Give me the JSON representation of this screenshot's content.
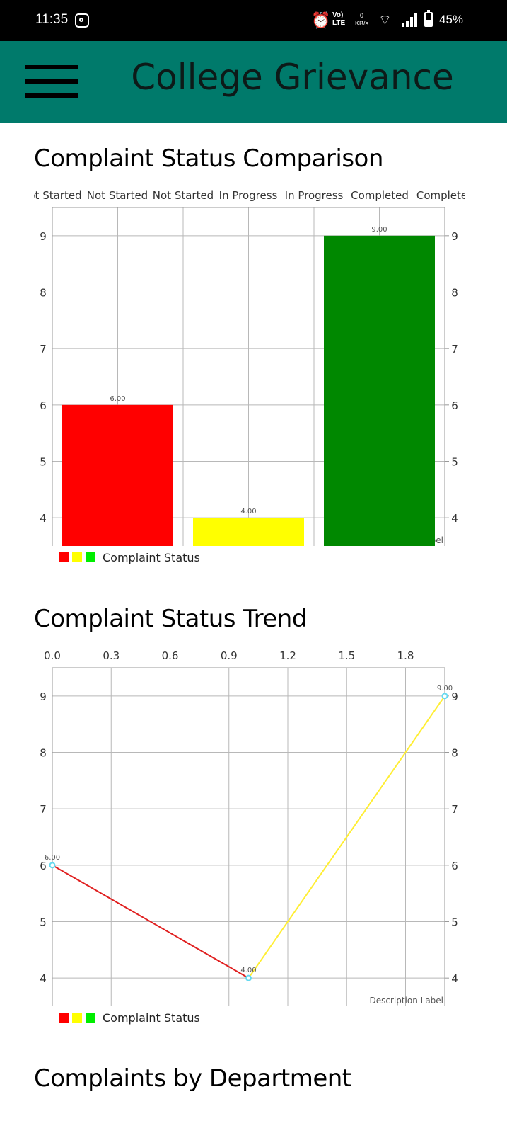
{
  "status_bar": {
    "time": "11:35",
    "alarm_icon": "alarm-icon",
    "network": "VoLTE",
    "speed_value": "0",
    "speed_unit": "KB/s",
    "battery_percent": "45%",
    "battery_level": 0.45
  },
  "app_bar": {
    "menu_icon": "hamburger-menu-icon",
    "title": "College Grievance",
    "background": "#007a6b"
  },
  "sections": {
    "comparison_title": "Complaint Status Comparison",
    "trend_title": "Complaint Status Trend",
    "department_title": "Complaints by Department"
  },
  "chart_data": [
    {
      "type": "bar",
      "title": "Complaint Status Comparison",
      "top_labels": [
        "ot Started",
        "Not Started",
        "Not Started",
        "In Progress",
        "In Progress",
        "Completed",
        "Complete"
      ],
      "categories": [
        "Not Started",
        "In Progress",
        "Completed"
      ],
      "values": [
        6,
        4,
        9
      ],
      "value_labels": [
        "6.00",
        "4.00",
        "9.00"
      ],
      "colors": [
        "#ff0000",
        "#ffff00",
        "#008800"
      ],
      "yticks": [
        4,
        5,
        6,
        7,
        8,
        9
      ],
      "ylim": [
        3.5,
        9.5
      ],
      "description": "Description Label",
      "legend": {
        "label": "Complaint Status",
        "colors": [
          "#ff0000",
          "#ffff00",
          "#00ee00"
        ],
        "position": "bottom-left"
      },
      "grid": true
    },
    {
      "type": "line",
      "title": "Complaint Status Trend",
      "x": [
        0,
        1,
        2
      ],
      "y": [
        6,
        4,
        9
      ],
      "value_labels": [
        "6.00",
        "4.00",
        "9.00"
      ],
      "segment_colors": [
        "#e02020",
        "#ffee33"
      ],
      "xticks": [
        "0.0",
        "0.3",
        "0.6",
        "0.9",
        "1.2",
        "1.5",
        "1.8"
      ],
      "xlim": [
        0,
        2
      ],
      "yticks": [
        4,
        5,
        6,
        7,
        8,
        9
      ],
      "ylim": [
        3.5,
        9.5
      ],
      "description": "Description Label",
      "legend": {
        "label": "Complaint Status",
        "colors": [
          "#ff0000",
          "#ffff00",
          "#00ee00"
        ],
        "position": "bottom-left"
      },
      "grid": true
    }
  ]
}
